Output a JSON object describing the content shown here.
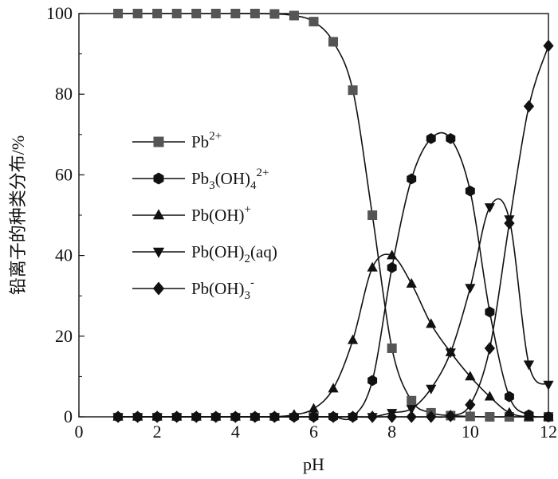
{
  "chart_data": {
    "type": "line",
    "xlabel": "pH",
    "ylabel": "铅离子的种类分布/%",
    "xlim": [
      0,
      12
    ],
    "ylim": [
      0,
      100
    ],
    "xticks": [
      0,
      2,
      4,
      6,
      8,
      10,
      12
    ],
    "yticks": [
      0,
      20,
      40,
      60,
      80,
      100
    ],
    "grid": false,
    "legend_position": "left-center",
    "series": [
      {
        "name": "Pb2+",
        "legend": {
          "base": "Pb",
          "sup": "2+"
        },
        "marker": "square",
        "color": "#555555",
        "x": [
          1.0,
          1.5,
          2.0,
          2.5,
          3.0,
          3.5,
          4.0,
          4.5,
          5.0,
          5.5,
          6.0,
          6.5,
          7.0,
          7.5,
          8.0,
          8.5,
          9.0,
          9.5,
          10.0,
          10.5,
          11.0,
          11.5,
          12.0
        ],
        "values": [
          100,
          100,
          100,
          100,
          100,
          100,
          100,
          100,
          99.9,
          99.5,
          98,
          93,
          81,
          50,
          17,
          4,
          1,
          0.3,
          0.1,
          0,
          0,
          0,
          0
        ]
      },
      {
        "name": "Pb3(OH)42+",
        "legend": {
          "base": "Pb",
          "sub1": "3",
          "mid": "(OH)",
          "sub2": "4",
          "sup": "2+"
        },
        "marker": "hexagon",
        "color": "#111111",
        "x": [
          1.0,
          1.5,
          2.0,
          2.5,
          3.0,
          3.5,
          4.0,
          4.5,
          5.0,
          5.5,
          6.0,
          6.5,
          7.0,
          7.5,
          8.0,
          8.5,
          9.0,
          9.5,
          10.0,
          10.5,
          11.0,
          11.5,
          12.0
        ],
        "values": [
          0,
          0,
          0,
          0,
          0,
          0,
          0,
          0,
          0,
          0,
          0,
          0,
          0,
          9,
          37,
          59,
          69,
          69,
          56,
          26,
          5,
          0.5,
          0
        ]
      },
      {
        "name": "Pb(OH)+",
        "legend": {
          "base": "Pb(OH)",
          "sup": "+"
        },
        "marker": "triangle-up",
        "color": "#111111",
        "x": [
          1.0,
          1.5,
          2.0,
          2.5,
          3.0,
          3.5,
          4.0,
          4.5,
          5.0,
          5.5,
          6.0,
          6.5,
          7.0,
          7.5,
          8.0,
          8.5,
          9.0,
          9.5,
          10.0,
          10.5,
          11.0,
          11.5,
          12.0
        ],
        "values": [
          0,
          0,
          0,
          0,
          0,
          0,
          0,
          0,
          0,
          0.5,
          2,
          7,
          19,
          37,
          40,
          33,
          23,
          16,
          10,
          5,
          1,
          0,
          0
        ]
      },
      {
        "name": "Pb(OH)2(aq)",
        "legend": {
          "base": "Pb(OH)",
          "sub1": "2",
          "mid": "(aq)"
        },
        "marker": "triangle-down",
        "color": "#111111",
        "x": [
          1.0,
          1.5,
          2.0,
          2.5,
          3.0,
          3.5,
          4.0,
          4.5,
          5.0,
          5.5,
          6.0,
          6.5,
          7.0,
          7.5,
          8.0,
          8.5,
          9.0,
          9.5,
          10.0,
          10.5,
          11.0,
          11.5,
          12.0
        ],
        "values": [
          0,
          0,
          0,
          0,
          0,
          0,
          0,
          0,
          0,
          0,
          0,
          0,
          0,
          0,
          1,
          2,
          7,
          16,
          32,
          52,
          49,
          13,
          8
        ]
      },
      {
        "name": "Pb(OH)3-",
        "legend": {
          "base": "Pb(OH)",
          "sub1": "3",
          "sup": "-"
        },
        "marker": "diamond",
        "color": "#111111",
        "x": [
          1.0,
          1.5,
          2.0,
          2.5,
          3.0,
          3.5,
          4.0,
          4.5,
          5.0,
          5.5,
          6.0,
          6.5,
          7.0,
          7.5,
          8.0,
          8.5,
          9.0,
          9.5,
          10.0,
          10.5,
          11.0,
          11.5,
          12.0
        ],
        "values": [
          0,
          0,
          0,
          0,
          0,
          0,
          0,
          0,
          0,
          0,
          0,
          0,
          0,
          0,
          0,
          0,
          0,
          0.2,
          3,
          17,
          48,
          77,
          92
        ]
      }
    ]
  }
}
